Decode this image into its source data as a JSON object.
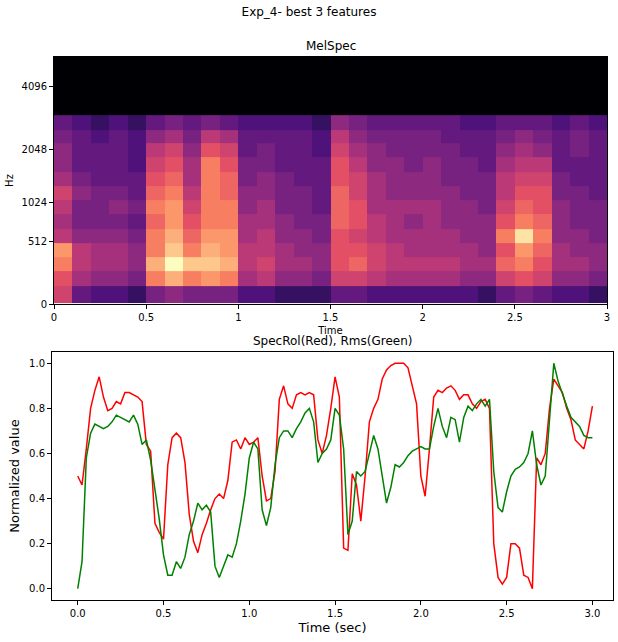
{
  "title": "Exp_4- best 3 features",
  "chart_data": [
    {
      "type": "heatmap",
      "title": "MelSpec",
      "x_label": "Time",
      "y_label": "Hz",
      "xlim": [
        0,
        3.0
      ],
      "xticks": [
        0,
        0.5,
        1,
        1.5,
        2,
        2.5,
        3
      ],
      "ylim": [
        0,
        5512.5
      ],
      "yticks": [
        0,
        512,
        1024,
        2048,
        4096
      ],
      "x": [
        0.05,
        0.15,
        0.25,
        0.35,
        0.45,
        0.55,
        0.65,
        0.75,
        0.85,
        0.95,
        1.05,
        1.15,
        1.25,
        1.35,
        1.45,
        1.55,
        1.65,
        1.75,
        1.85,
        1.95,
        2.05,
        2.15,
        2.25,
        2.35,
        2.45,
        2.55,
        2.65,
        2.75,
        2.85,
        2.95
      ],
      "y": [
        60,
        180,
        300,
        430,
        580,
        750,
        950,
        1170,
        1420,
        1700,
        2020,
        2380,
        2750,
        3300,
        4100,
        5100
      ],
      "cells": [
        [
          0.55,
          0.6,
          0.7,
          0.75,
          0.5,
          0.45,
          0.5,
          0.55,
          0.45,
          0.4,
          0.4,
          0.35,
          0.3,
          0.02,
          0.02,
          0.02
        ],
        [
          0.3,
          0.45,
          0.5,
          0.5,
          0.4,
          0.35,
          0.35,
          0.4,
          0.35,
          0.3,
          0.3,
          0.3,
          0.25,
          0.02,
          0.02,
          0.02
        ],
        [
          0.25,
          0.4,
          0.45,
          0.45,
          0.4,
          0.35,
          0.35,
          0.35,
          0.3,
          0.3,
          0.3,
          0.25,
          0.2,
          0.02,
          0.02,
          0.02
        ],
        [
          0.25,
          0.4,
          0.45,
          0.45,
          0.4,
          0.35,
          0.4,
          0.35,
          0.3,
          0.3,
          0.3,
          0.3,
          0.25,
          0.02,
          0.02,
          0.02
        ],
        [
          0.2,
          0.35,
          0.4,
          0.4,
          0.35,
          0.3,
          0.35,
          0.3,
          0.3,
          0.25,
          0.25,
          0.25,
          0.2,
          0.02,
          0.02,
          0.02
        ],
        [
          0.35,
          0.7,
          0.8,
          0.7,
          0.7,
          0.65,
          0.7,
          0.65,
          0.6,
          0.55,
          0.5,
          0.4,
          0.3,
          0.02,
          0.02,
          0.02
        ],
        [
          0.4,
          0.8,
          0.95,
          0.85,
          0.8,
          0.75,
          0.75,
          0.7,
          0.65,
          0.6,
          0.55,
          0.45,
          0.35,
          0.02,
          0.02,
          0.02
        ],
        [
          0.35,
          0.7,
          0.85,
          0.7,
          0.65,
          0.6,
          0.55,
          0.5,
          0.45,
          0.45,
          0.4,
          0.35,
          0.3,
          0.02,
          0.02,
          0.02
        ],
        [
          0.35,
          0.75,
          0.85,
          0.8,
          0.75,
          0.7,
          0.7,
          0.7,
          0.7,
          0.7,
          0.6,
          0.5,
          0.35,
          0.02,
          0.02,
          0.02
        ],
        [
          0.35,
          0.7,
          0.8,
          0.75,
          0.75,
          0.7,
          0.7,
          0.65,
          0.65,
          0.6,
          0.55,
          0.45,
          0.3,
          0.02,
          0.02,
          0.02
        ],
        [
          0.25,
          0.45,
          0.5,
          0.5,
          0.45,
          0.45,
          0.4,
          0.4,
          0.35,
          0.35,
          0.3,
          0.3,
          0.25,
          0.02,
          0.02,
          0.02
        ],
        [
          0.25,
          0.5,
          0.55,
          0.5,
          0.5,
          0.45,
          0.45,
          0.4,
          0.4,
          0.35,
          0.35,
          0.3,
          0.25,
          0.02,
          0.02,
          0.02
        ],
        [
          0.2,
          0.4,
          0.45,
          0.45,
          0.4,
          0.4,
          0.35,
          0.35,
          0.35,
          0.3,
          0.3,
          0.3,
          0.25,
          0.02,
          0.02,
          0.02
        ],
        [
          0.2,
          0.4,
          0.45,
          0.4,
          0.4,
          0.35,
          0.35,
          0.35,
          0.3,
          0.3,
          0.3,
          0.3,
          0.25,
          0.02,
          0.02,
          0.02
        ],
        [
          0.2,
          0.35,
          0.4,
          0.4,
          0.35,
          0.35,
          0.3,
          0.3,
          0.3,
          0.3,
          0.25,
          0.25,
          0.2,
          0.02,
          0.02,
          0.02
        ],
        [
          0.3,
          0.55,
          0.6,
          0.6,
          0.6,
          0.65,
          0.65,
          0.65,
          0.6,
          0.6,
          0.55,
          0.5,
          0.4,
          0.02,
          0.02,
          0.02
        ],
        [
          0.3,
          0.55,
          0.65,
          0.6,
          0.55,
          0.6,
          0.6,
          0.55,
          0.55,
          0.5,
          0.45,
          0.4,
          0.35,
          0.02,
          0.02,
          0.02
        ],
        [
          0.25,
          0.5,
          0.55,
          0.55,
          0.5,
          0.5,
          0.45,
          0.45,
          0.45,
          0.4,
          0.4,
          0.35,
          0.3,
          0.02,
          0.02,
          0.02
        ],
        [
          0.25,
          0.45,
          0.5,
          0.5,
          0.45,
          0.45,
          0.45,
          0.4,
          0.4,
          0.4,
          0.35,
          0.35,
          0.3,
          0.02,
          0.02,
          0.02
        ],
        [
          0.25,
          0.45,
          0.5,
          0.45,
          0.45,
          0.4,
          0.45,
          0.4,
          0.4,
          0.35,
          0.35,
          0.35,
          0.3,
          0.02,
          0.02,
          0.02
        ],
        [
          0.25,
          0.45,
          0.5,
          0.45,
          0.45,
          0.45,
          0.45,
          0.4,
          0.4,
          0.4,
          0.35,
          0.35,
          0.3,
          0.02,
          0.02,
          0.02
        ],
        [
          0.25,
          0.45,
          0.5,
          0.45,
          0.45,
          0.4,
          0.4,
          0.4,
          0.35,
          0.35,
          0.35,
          0.3,
          0.3,
          0.02,
          0.02,
          0.02
        ],
        [
          0.25,
          0.4,
          0.45,
          0.45,
          0.4,
          0.4,
          0.4,
          0.35,
          0.35,
          0.35,
          0.3,
          0.3,
          0.25,
          0.02,
          0.02,
          0.02
        ],
        [
          0.2,
          0.4,
          0.45,
          0.4,
          0.4,
          0.4,
          0.35,
          0.35,
          0.35,
          0.3,
          0.3,
          0.3,
          0.25,
          0.02,
          0.02,
          0.02
        ],
        [
          0.3,
          0.55,
          0.65,
          0.6,
          0.7,
          0.6,
          0.55,
          0.5,
          0.5,
          0.45,
          0.4,
          0.35,
          0.3,
          0.02,
          0.02,
          0.02
        ],
        [
          0.35,
          0.6,
          0.7,
          0.75,
          0.9,
          0.7,
          0.65,
          0.6,
          0.55,
          0.5,
          0.45,
          0.4,
          0.3,
          0.02,
          0.02,
          0.02
        ],
        [
          0.3,
          0.55,
          0.6,
          0.65,
          0.7,
          0.65,
          0.6,
          0.6,
          0.55,
          0.5,
          0.4,
          0.35,
          0.3,
          0.02,
          0.02,
          0.02
        ],
        [
          0.25,
          0.4,
          0.45,
          0.45,
          0.4,
          0.4,
          0.4,
          0.35,
          0.35,
          0.3,
          0.3,
          0.3,
          0.25,
          0.02,
          0.02,
          0.02
        ],
        [
          0.25,
          0.4,
          0.45,
          0.4,
          0.4,
          0.35,
          0.35,
          0.35,
          0.3,
          0.3,
          0.35,
          0.35,
          0.3,
          0.02,
          0.02,
          0.02
        ],
        [
          0.2,
          0.35,
          0.4,
          0.4,
          0.35,
          0.35,
          0.35,
          0.3,
          0.3,
          0.3,
          0.3,
          0.3,
          0.25,
          0.02,
          0.02,
          0.02
        ]
      ]
    },
    {
      "type": "line",
      "title": "SpecRol(Red), Rms(Green)",
      "x_label": "Time (sec)",
      "y_label": "Normalized value",
      "xlim": [
        -0.15,
        3.12
      ],
      "xticks": [
        {
          "value": 0,
          "label": "0.0"
        },
        0.5,
        {
          "value": 1,
          "label": "1.0"
        },
        1.5,
        {
          "value": 2,
          "label": "2.0"
        },
        2.5,
        {
          "value": 3,
          "label": "3.0"
        }
      ],
      "ylim": [
        -0.05,
        1.05
      ],
      "yticks": [
        {
          "value": 0,
          "label": "0.0"
        },
        0.2,
        0.4,
        0.6,
        0.8,
        {
          "value": 1,
          "label": "1.0"
        }
      ],
      "x": [
        0,
        0.025,
        0.05,
        0.075,
        0.1,
        0.125,
        0.15,
        0.175,
        0.2,
        0.225,
        0.25,
        0.275,
        0.3,
        0.325,
        0.35,
        0.375,
        0.4,
        0.425,
        0.45,
        0.475,
        0.5,
        0.525,
        0.55,
        0.575,
        0.6,
        0.625,
        0.65,
        0.675,
        0.7,
        0.725,
        0.75,
        0.775,
        0.8,
        0.825,
        0.85,
        0.875,
        0.9,
        0.925,
        0.95,
        0.975,
        1,
        1.025,
        1.05,
        1.075,
        1.1,
        1.125,
        1.15,
        1.175,
        1.2,
        1.225,
        1.25,
        1.275,
        1.3,
        1.325,
        1.35,
        1.375,
        1.4,
        1.425,
        1.45,
        1.475,
        1.5,
        1.525,
        1.55,
        1.575,
        1.6,
        1.625,
        1.65,
        1.675,
        1.7,
        1.725,
        1.75,
        1.775,
        1.8,
        1.825,
        1.85,
        1.875,
        1.9,
        1.925,
        1.95,
        1.975,
        2,
        2.025,
        2.05,
        2.075,
        2.1,
        2.125,
        2.15,
        2.175,
        2.2,
        2.225,
        2.25,
        2.275,
        2.3,
        2.325,
        2.35,
        2.375,
        2.4,
        2.425,
        2.45,
        2.475,
        2.5,
        2.525,
        2.55,
        2.575,
        2.6,
        2.625,
        2.65,
        2.675,
        2.7,
        2.725,
        2.75,
        2.775,
        2.8,
        2.825,
        2.85,
        2.875,
        2.9,
        2.925,
        2.95,
        2.975,
        3
      ],
      "series": [
        {
          "name": "SpecRol",
          "color": "#ff0000",
          "values": [
            0.5,
            0.46,
            0.62,
            0.8,
            0.88,
            0.94,
            0.85,
            0.79,
            0.8,
            0.83,
            0.82,
            0.87,
            0.87,
            0.86,
            0.85,
            0.83,
            0.64,
            0.61,
            0.29,
            0.25,
            0.22,
            0.55,
            0.67,
            0.69,
            0.67,
            0.56,
            0.33,
            0.21,
            0.16,
            0.24,
            0.29,
            0.35,
            0.4,
            0.42,
            0.4,
            0.48,
            0.65,
            0.66,
            0.62,
            0.67,
            0.64,
            0.65,
            0.67,
            0.5,
            0.39,
            0.4,
            0.52,
            0.84,
            0.9,
            0.82,
            0.8,
            0.86,
            0.87,
            0.86,
            0.87,
            0.86,
            0.66,
            0.6,
            0.68,
            0.8,
            0.94,
            0.85,
            0.18,
            0.17,
            0.51,
            0.46,
            0.3,
            0.5,
            0.74,
            0.8,
            0.84,
            0.93,
            0.97,
            0.99,
            1.0,
            1.0,
            1.0,
            0.98,
            0.9,
            0.82,
            0.5,
            0.41,
            0.62,
            0.85,
            0.88,
            0.87,
            0.89,
            0.9,
            0.88,
            0.84,
            0.86,
            0.86,
            0.82,
            0.8,
            0.83,
            0.84,
            0.8,
            0.2,
            0.05,
            0.02,
            0.05,
            0.2,
            0.2,
            0.18,
            0.06,
            0.05,
            0.0,
            0.58,
            0.55,
            0.6,
            0.8,
            0.93,
            0.9,
            0.87,
            0.8,
            0.75,
            0.66,
            0.64,
            0.62,
            0.7,
            0.81
          ]
        },
        {
          "name": "Rms",
          "color": "#008000",
          "values": [
            0.0,
            0.12,
            0.58,
            0.69,
            0.73,
            0.72,
            0.71,
            0.72,
            0.74,
            0.77,
            0.76,
            0.75,
            0.74,
            0.77,
            0.73,
            0.64,
            0.66,
            0.57,
            0.45,
            0.31,
            0.15,
            0.06,
            0.06,
            0.12,
            0.09,
            0.14,
            0.24,
            0.3,
            0.38,
            0.35,
            0.37,
            0.34,
            0.1,
            0.05,
            0.1,
            0.15,
            0.14,
            0.2,
            0.3,
            0.42,
            0.58,
            0.65,
            0.62,
            0.35,
            0.28,
            0.36,
            0.55,
            0.67,
            0.7,
            0.7,
            0.67,
            0.71,
            0.74,
            0.78,
            0.8,
            0.74,
            0.56,
            0.6,
            0.62,
            0.66,
            0.8,
            0.77,
            0.62,
            0.24,
            0.3,
            0.52,
            0.5,
            0.52,
            0.6,
            0.68,
            0.62,
            0.5,
            0.38,
            0.45,
            0.55,
            0.54,
            0.56,
            0.59,
            0.61,
            0.62,
            0.63,
            0.62,
            0.62,
            0.72,
            0.8,
            0.72,
            0.67,
            0.76,
            0.75,
            0.65,
            0.76,
            0.81,
            0.79,
            0.82,
            0.84,
            0.81,
            0.84,
            0.52,
            0.36,
            0.34,
            0.43,
            0.5,
            0.53,
            0.54,
            0.56,
            0.6,
            0.7,
            0.55,
            0.46,
            0.5,
            0.75,
            1.0,
            0.92,
            0.86,
            0.81,
            0.76,
            0.74,
            0.72,
            0.68,
            0.67,
            0.67
          ]
        }
      ]
    }
  ]
}
